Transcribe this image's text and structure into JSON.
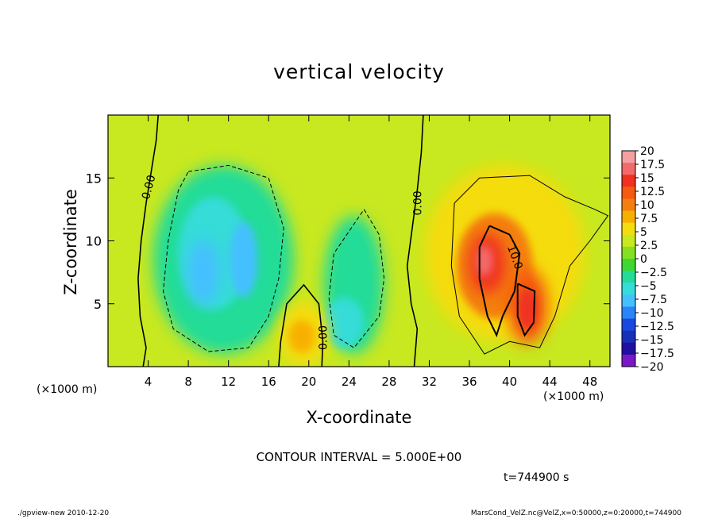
{
  "chart_data": {
    "type": "heatmap",
    "title": "vertical velocity",
    "xlabel": "X-coordinate",
    "ylabel": "Z-coordinate",
    "x_unit_label": "(×1000 m)",
    "y_unit_label": "(×1000 m)",
    "xlim": [
      0,
      50
    ],
    "ylim": [
      0,
      20
    ],
    "x_ticks": [
      4,
      8,
      12,
      16,
      20,
      24,
      28,
      32,
      36,
      40,
      44,
      48
    ],
    "y_ticks": [
      5,
      10,
      15
    ],
    "contour_interval_text": "CONTOUR INTERVAL = 5.000E+00",
    "contour_labels": [
      "0.00",
      "0.00",
      "0.00",
      "10.0"
    ],
    "colorbar": {
      "levels": [
        "20",
        "17.5",
        "15",
        "12.5",
        "10",
        "7.5",
        "5",
        "2.5",
        "0",
        "−2.5",
        "−5",
        "−7.5",
        "−10",
        "−12.5",
        "−15",
        "−17.5",
        "−20"
      ],
      "colors": [
        "#f4a0a0",
        "#f36a6a",
        "#f03020",
        "#f45a10",
        "#f47f10",
        "#f8b000",
        "#f5dc10",
        "#c8e820",
        "#84e020",
        "#3ed830",
        "#24dc98",
        "#36dcd8",
        "#44c0ff",
        "#2a86f8",
        "#1848e0",
        "#1830b8",
        "#2010a0",
        "#7a18c8"
      ]
    },
    "features": [
      {
        "name": "downdraft-left",
        "x": 10.5,
        "z": 8,
        "peak": -12.5
      },
      {
        "name": "downdraft-middle",
        "x": 24,
        "z": 6,
        "peak": -7.5
      },
      {
        "name": "updraft-low",
        "x": 19.5,
        "z": 2.5,
        "peak": 7.5
      },
      {
        "name": "updraft-main",
        "x": 38.5,
        "z": 8,
        "peak": 17.5
      },
      {
        "name": "updraft-right",
        "x": 41.5,
        "z": 4.5,
        "peak": 15
      }
    ]
  },
  "time_text": "t=744900 s",
  "footer_left": "./gpview-new  2010-12-20",
  "footer_right": "MarsCond_VelZ.nc@VelZ,x=0:50000,z=0:20000,t=744900"
}
